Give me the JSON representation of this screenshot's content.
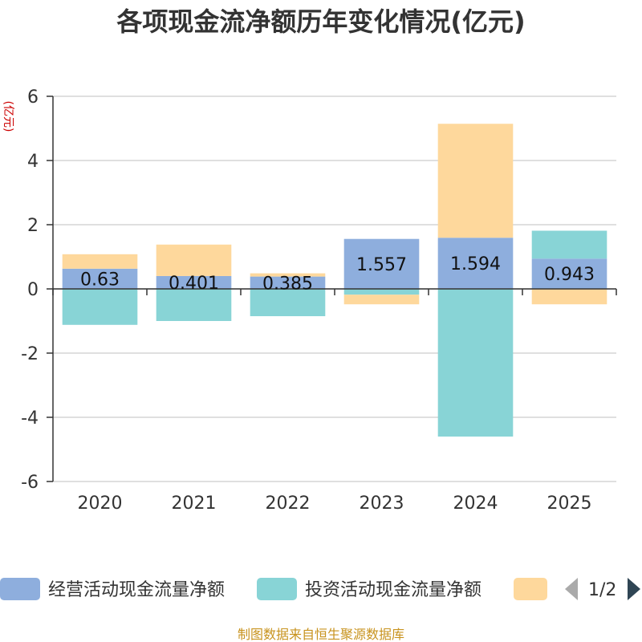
{
  "chart_data": {
    "type": "bar",
    "stacked": true,
    "title": "各项现金流净额历年变化情况(亿元)",
    "ylabel": "(亿元)",
    "xlabel": "",
    "ylim": [
      -6,
      6
    ],
    "yticks": [
      6,
      4,
      2,
      0,
      -2,
      -4,
      -6
    ],
    "categories": [
      "2020",
      "2021",
      "2022",
      "2023",
      "2024",
      "2025"
    ],
    "series": [
      {
        "name": "经营活动现金流量净额",
        "color": "#8eaedd",
        "values": [
          0.63,
          0.401,
          0.385,
          1.557,
          1.594,
          0.943
        ],
        "labels": [
          "0.63",
          "0.401",
          "0.385",
          "1.557",
          "1.594",
          "0.943"
        ]
      },
      {
        "name": "投资活动现金流量净额",
        "color": "#88d4d6",
        "values": [
          -1.12,
          -1.0,
          -0.85,
          -0.18,
          -4.6,
          0.87
        ]
      },
      {
        "name": "",
        "color": "#fed89c",
        "values": [
          0.45,
          0.98,
          0.1,
          -0.3,
          3.55,
          -0.48
        ]
      }
    ],
    "legend": {
      "position": "bottom",
      "page": "1/2"
    },
    "grid": true
  },
  "source_text": "制图数据来自恒生聚源数据库"
}
